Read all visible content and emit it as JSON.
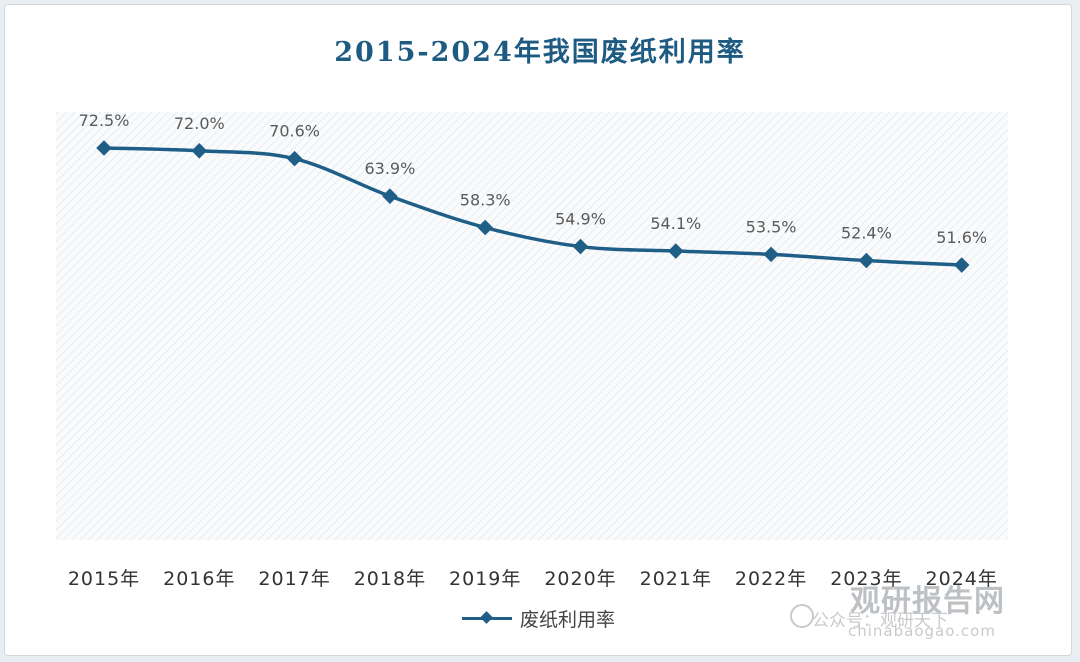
{
  "title": "2015-2024年我国废纸利用率",
  "legend": {
    "label": "废纸利用率",
    "color": "#1f5f87"
  },
  "watermark": {
    "brand": "观研报告网",
    "sub": "公众号：观研天下",
    "url": "chinabaogao.com"
  },
  "chart_data": {
    "type": "line",
    "title": "2015-2024年我国废纸利用率",
    "categories": [
      "2015年",
      "2016年",
      "2017年",
      "2018年",
      "2019年",
      "2020年",
      "2021年",
      "2022年",
      "2023年",
      "2024年"
    ],
    "series": [
      {
        "name": "废纸利用率",
        "values": [
          72.5,
          72.0,
          70.6,
          63.9,
          58.3,
          54.9,
          54.1,
          53.5,
          52.4,
          51.6
        ],
        "labels": [
          "72.5%",
          "72.0%",
          "70.6%",
          "63.9%",
          "58.3%",
          "54.9%",
          "54.1%",
          "53.5%",
          "52.4%",
          "51.6%"
        ]
      }
    ],
    "grid": false,
    "legend_position": "bottom",
    "line_color": "#1f5f87"
  }
}
